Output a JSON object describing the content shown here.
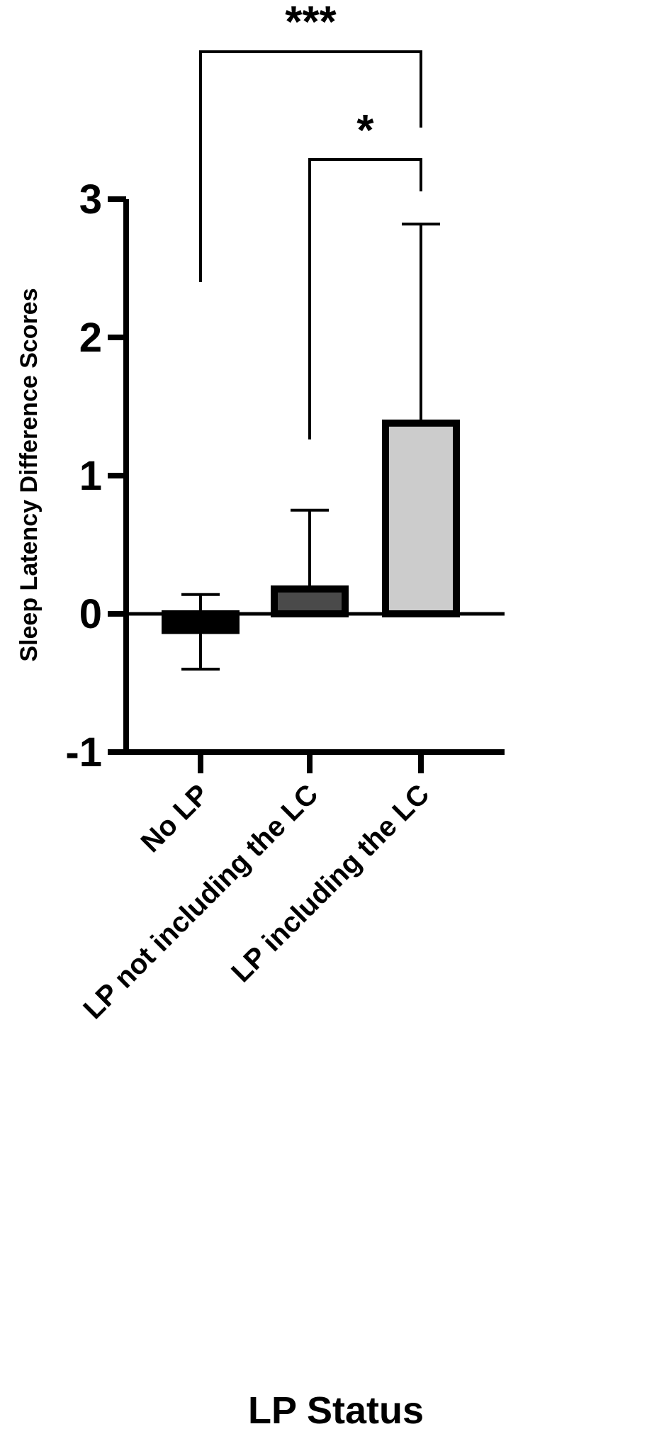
{
  "chart_data": {
    "type": "bar",
    "categories": [
      "No LP",
      "LP not including the LC",
      "LP including the LC"
    ],
    "values": [
      -0.12,
      0.18,
      1.38
    ],
    "error_upper": [
      0.14,
      0.75,
      2.82
    ],
    "error_lower": [
      -0.4,
      null,
      null
    ],
    "bar_colors": [
      "#000000",
      "#4a4a4a",
      "#cccccc"
    ],
    "xlabel": "LP Status",
    "ylabel": "Sleep Latency Difference Scores",
    "ylim": [
      -1,
      3
    ],
    "yticks": [
      -1,
      0,
      1,
      2,
      3
    ],
    "ytick_labels": [
      "-1",
      "0",
      "1",
      "2",
      "3"
    ],
    "grid": false,
    "significance": [
      {
        "from": 0,
        "to": 2,
        "label": "***"
      },
      {
        "from": 1,
        "to": 2,
        "label": "*"
      }
    ]
  }
}
